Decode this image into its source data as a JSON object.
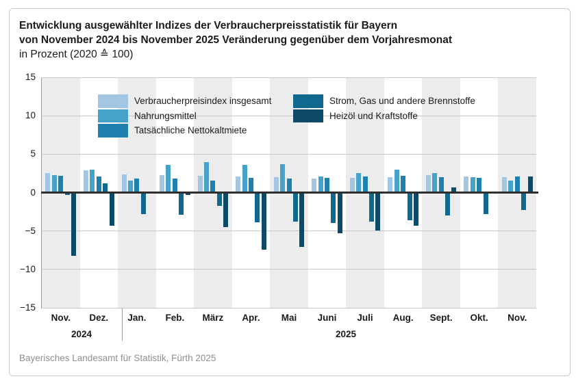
{
  "title": {
    "line1": "Entwicklung ausgewählter Indizes der Verbraucherpreisstatistik für Bayern",
    "line2": "von November 2024 bis November 2025 Veränderung gegenüber dem Vorjahresmonat",
    "line3": "in Prozent (2020 ≙ 100)"
  },
  "footer": "Bayerisches Landesamt für Statistik, Fürth 2025",
  "chart_data": {
    "type": "bar",
    "title": "Entwicklung ausgewählter Indizes der Verbraucherpreisstatistik für Bayern von November 2024 bis November 2025, Veränderung gegenüber dem Vorjahresmonat in Prozent (2020 ≙ 100)",
    "categories": [
      "Nov.",
      "Dez.",
      "Jan.",
      "Feb.",
      "März",
      "Apr.",
      "Mai",
      "Juni",
      "Juli",
      "Aug.",
      "Sept.",
      "Okt.",
      "Nov."
    ],
    "year_groups": [
      {
        "label": "2024",
        "start": 0,
        "end": 1
      },
      {
        "label": "2025",
        "start": 2,
        "end": 12
      }
    ],
    "series": [
      {
        "name": "Verbraucherpreisindex insgesamt",
        "color": "#a3c7e2",
        "values": [
          2.5,
          2.9,
          2.4,
          2.3,
          2.2,
          2.1,
          2.0,
          1.8,
          1.9,
          2.0,
          2.3,
          2.1,
          2.0
        ]
      },
      {
        "name": "Nahrungsmittel",
        "color": "#46a2c8",
        "values": [
          2.3,
          3.0,
          1.6,
          3.6,
          4.0,
          3.6,
          3.7,
          2.1,
          2.5,
          3.0,
          2.5,
          2.0,
          1.6
        ]
      },
      {
        "name": "Tatsächliche Nettokaltmiete",
        "color": "#1e80ac",
        "values": [
          2.2,
          2.1,
          1.8,
          1.8,
          1.6,
          1.9,
          1.8,
          1.9,
          2.1,
          2.2,
          2.0,
          1.9,
          2.1
        ]
      },
      {
        "name": "Strom, Gas und andere Brennstoffe",
        "color": "#11688e",
        "values": [
          -0.3,
          1.2,
          -2.8,
          -2.9,
          -1.7,
          -3.9,
          -3.8,
          -4.0,
          -3.8,
          -3.6,
          -3.0,
          -2.8,
          -2.3
        ]
      },
      {
        "name": "Heizöl und Kraftstoffe",
        "color": "#0c4a68",
        "values": [
          -8.2,
          -4.3,
          0.0,
          -0.3,
          -4.5,
          -7.4,
          -7.1,
          -5.3,
          -4.9,
          -4.3,
          0.7,
          0.0,
          2.1
        ]
      }
    ],
    "ylim": [
      -15,
      15
    ],
    "yticks": [
      15,
      10,
      5,
      0,
      -5,
      -10,
      -15
    ],
    "grid": true,
    "legend_position": "top-inside",
    "legend_columns": [
      [
        0,
        1,
        2
      ],
      [
        3,
        4
      ]
    ]
  },
  "colors": {
    "band_gray": "#ececec",
    "grid": "#c8c8c8",
    "zero_line": "#2e2e2e",
    "axis_line": "#9a9a9a",
    "text": "#1a1a1a",
    "footer_text": "#8f8f8f",
    "border": "#c9c9c9"
  }
}
